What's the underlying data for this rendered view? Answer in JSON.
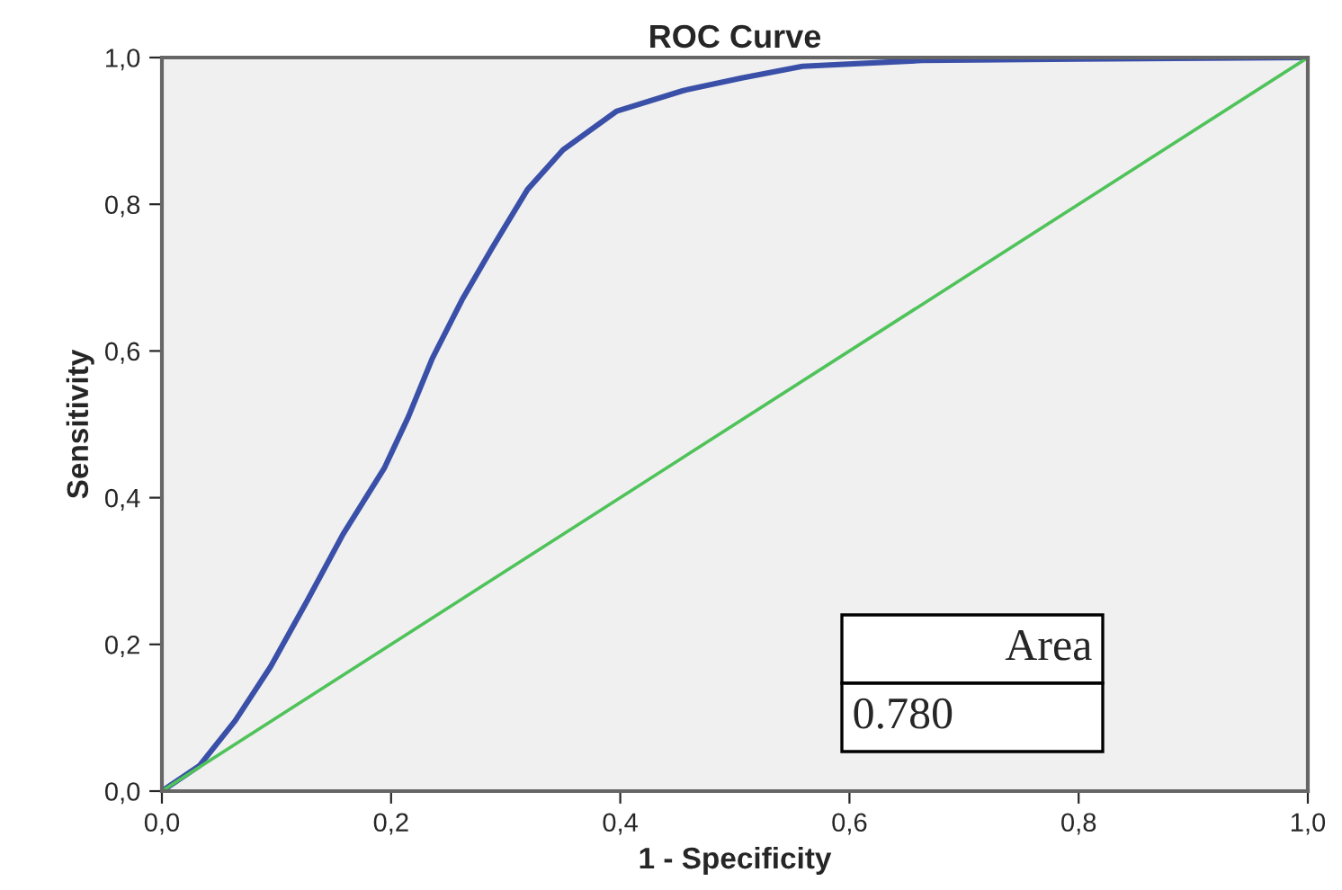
{
  "chart_data": {
    "type": "line",
    "title": "ROC Curve",
    "xlabel": "1 - Specificity",
    "ylabel": "Sensitivity",
    "series": [
      {
        "color": "#3a4fa8",
        "x": [
          0,
          0.033,
          0.064,
          0.095,
          0.127,
          0.158,
          0.194,
          0.215,
          0.236,
          0.262,
          0.288,
          0.319,
          0.35,
          0.397,
          0.455,
          0.506,
          0.559,
          0.663,
          0.8,
          1.0
        ],
        "values": [
          0,
          0.035,
          0.096,
          0.17,
          0.26,
          0.35,
          0.44,
          0.51,
          0.59,
          0.67,
          0.74,
          0.82,
          0.874,
          0.927,
          0.955,
          0.972,
          0.988,
          0.996,
          0.998,
          1.0
        ]
      },
      {
        "color": "#4fc35a",
        "x": [
          0,
          1
        ],
        "values": [
          0,
          1
        ]
      }
    ],
    "xlim": [
      0,
      1
    ],
    "ylim": [
      0,
      1
    ],
    "xticks": [
      {
        "value": 0,
        "label": "0,0"
      },
      {
        "value": 0.2,
        "label": "0,2"
      },
      {
        "value": 0.4,
        "label": "0,4"
      },
      {
        "value": 0.6,
        "label": "0,6"
      },
      {
        "value": 0.8,
        "label": "0,8"
      },
      {
        "value": 1,
        "label": "1,0"
      }
    ],
    "yticks": [
      {
        "value": 0,
        "label": "0,0"
      },
      {
        "value": 0.2,
        "label": "0,2"
      },
      {
        "value": 0.4,
        "label": "0,4"
      },
      {
        "value": 0.6,
        "label": "0,6"
      },
      {
        "value": 0.8,
        "label": "0,8"
      },
      {
        "value": 1,
        "label": "1,0"
      }
    ],
    "annotations": [
      "Area",
      "0.780"
    ],
    "grid": false
  }
}
